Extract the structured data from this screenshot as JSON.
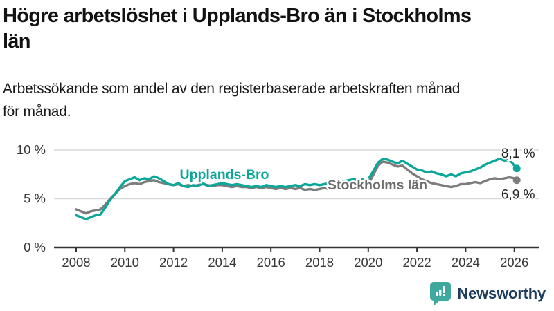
{
  "title": {
    "lines": [
      "Högre arbetslöshet i Upplands-Bro än i Stockholms",
      "län"
    ]
  },
  "subtitle": {
    "lines": [
      "Arbetssökande som andel av den registerbaserade arbetskraften månad",
      "för månad."
    ]
  },
  "footer": {
    "brand": "Newsworthy"
  },
  "colors": {
    "series_upplands_bro": "#0ba79a",
    "series_stockholms_lan": "#7d7d7d",
    "grid": "#d9d9d9",
    "axis": "#333333",
    "tick_text": "#383838",
    "end_label_text": "#222222",
    "brand_navy": "#1d3d5e",
    "brand_teal": "#3fa9a0"
  },
  "chart_data": {
    "type": "line",
    "title": "Högre arbetslöshet i Upplands-Bro än i Stockholms län",
    "subtitle": "Arbetssökande som andel av den registerbaserade arbetskraften månad för månad.",
    "grid": "horizontal",
    "legend_position": "inline-labels",
    "xlim": [
      2007.9,
      2027.0
    ],
    "ylim": [
      0,
      10.6
    ],
    "x_axis": {
      "ticks": [
        2008,
        2010,
        2012,
        2014,
        2016,
        2018,
        2020,
        2022,
        2024,
        2026
      ]
    },
    "y_axis": {
      "ticks": [
        {
          "value": 0,
          "label": "0 %"
        },
        {
          "value": 5,
          "label": "5 %"
        },
        {
          "value": 10,
          "label": "10 %"
        }
      ]
    },
    "x_start": 2008.0,
    "x_step": 0.2,
    "x_end": 2026.1,
    "unit": "%",
    "series": [
      {
        "name": "Upplands-Bro",
        "color": "#0ba79a",
        "end_label": "8,1 %",
        "end_value": 8.1,
        "end_label_side": "above",
        "values": [
          3.3,
          3.1,
          2.9,
          3.1,
          3.3,
          3.4,
          4.1,
          4.9,
          5.5,
          6.2,
          6.8,
          7.0,
          7.2,
          6.9,
          7.1,
          7.0,
          7.3,
          7.1,
          6.8,
          6.5,
          6.4,
          6.6,
          6.3,
          6.2,
          6.4,
          6.3,
          6.6,
          6.3,
          6.4,
          6.5,
          6.6,
          6.5,
          6.4,
          6.5,
          6.4,
          6.3,
          6.2,
          6.3,
          6.2,
          6.4,
          6.3,
          6.2,
          6.3,
          6.2,
          6.3,
          6.4,
          6.3,
          6.5,
          6.4,
          6.5,
          6.4,
          6.5,
          6.6,
          6.5,
          6.7,
          6.8,
          6.9,
          7.0,
          6.9,
          7.0,
          7.0,
          7.8,
          8.7,
          9.1,
          9.0,
          8.8,
          8.6,
          8.9,
          8.6,
          8.3,
          8.0,
          7.9,
          7.7,
          7.8,
          7.6,
          7.5,
          7.3,
          7.5,
          7.3,
          7.6,
          7.7,
          7.8,
          8.0,
          8.2,
          8.5,
          8.7,
          8.9,
          9.1,
          8.9,
          9.0,
          8.4,
          8.1
        ]
      },
      {
        "name": "Stockholms län",
        "color": "#7d7d7d",
        "end_label": "6,9 %",
        "end_value": 6.9,
        "end_label_side": "below",
        "values": [
          3.9,
          3.7,
          3.5,
          3.7,
          3.8,
          3.9,
          4.4,
          5.0,
          5.5,
          6.0,
          6.3,
          6.5,
          6.6,
          6.5,
          6.7,
          6.8,
          6.9,
          6.7,
          6.6,
          6.5,
          6.4,
          6.5,
          6.3,
          6.4,
          6.3,
          6.4,
          6.5,
          6.4,
          6.3,
          6.4,
          6.4,
          6.3,
          6.2,
          6.3,
          6.2,
          6.2,
          6.1,
          6.2,
          6.1,
          6.2,
          6.1,
          6.0,
          6.1,
          6.0,
          6.1,
          6.0,
          6.1,
          5.9,
          6.0,
          5.9,
          6.0,
          6.1,
          6.0,
          6.1,
          6.2,
          6.2,
          6.3,
          6.3,
          6.4,
          6.4,
          6.5,
          7.4,
          8.4,
          8.8,
          8.7,
          8.5,
          8.3,
          8.4,
          8.0,
          7.6,
          7.3,
          7.0,
          6.8,
          6.6,
          6.5,
          6.4,
          6.3,
          6.2,
          6.3,
          6.5,
          6.5,
          6.6,
          6.7,
          6.6,
          6.8,
          7.0,
          7.1,
          7.0,
          7.1,
          7.2,
          7.1,
          6.9
        ]
      }
    ]
  }
}
